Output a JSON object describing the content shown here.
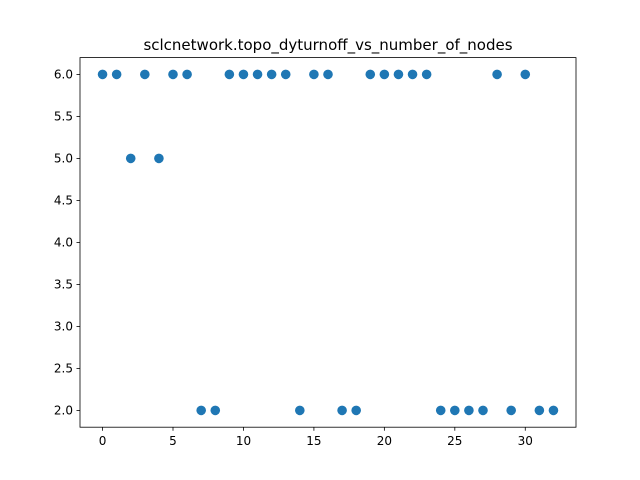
{
  "chart_data": {
    "type": "scatter",
    "title": "sclcnetwork.topo_dyturnoff_vs_number_of_nodes",
    "xlabel": "",
    "ylabel": "",
    "xlim": [
      -1.6,
      33.6
    ],
    "ylim": [
      1.8,
      6.2
    ],
    "xticks": [
      0,
      5,
      10,
      15,
      20,
      25,
      30
    ],
    "xtick_labels": [
      "0",
      "5",
      "10",
      "15",
      "20",
      "25",
      "30"
    ],
    "yticks": [
      2.0,
      2.5,
      3.0,
      3.5,
      4.0,
      4.5,
      5.0,
      5.5,
      6.0
    ],
    "ytick_labels": [
      "2.0",
      "2.5",
      "3.0",
      "3.5",
      "4.0",
      "4.5",
      "5.0",
      "5.5",
      "6.0"
    ],
    "grid": false,
    "marker_color": "#1f77b4",
    "x": [
      0,
      1,
      2,
      3,
      4,
      5,
      6,
      7,
      8,
      9,
      10,
      11,
      12,
      13,
      14,
      15,
      16,
      17,
      18,
      19,
      20,
      21,
      22,
      23,
      24,
      25,
      26,
      27,
      28,
      29,
      30,
      31,
      32
    ],
    "y": [
      6,
      6,
      5,
      6,
      5,
      6,
      6,
      2,
      2,
      6,
      6,
      6,
      6,
      6,
      2,
      6,
      6,
      2,
      2,
      6,
      6,
      6,
      6,
      6,
      2,
      2,
      2,
      2,
      6,
      2,
      6,
      2,
      2
    ]
  }
}
